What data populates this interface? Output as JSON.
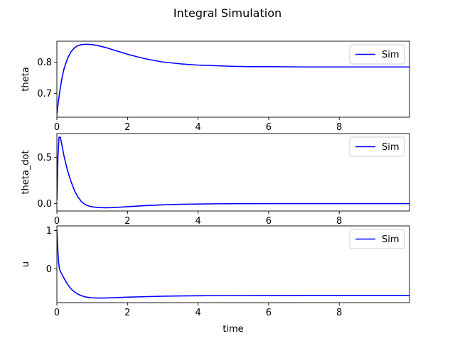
{
  "figure": {
    "suptitle": "Integral Simulation",
    "line_color": "#0000ff",
    "legend_border_color": "#cccccc"
  },
  "chart_data": [
    {
      "type": "line",
      "ylabel": "theta",
      "xlabel": "",
      "xlim": [
        0,
        9.99
      ],
      "ylim": [
        0.623,
        0.868
      ],
      "xticks": [
        0,
        2,
        4,
        6,
        8
      ],
      "yticks": [
        0.7,
        0.8
      ],
      "ytick_labels": [
        "0.7",
        "0.8"
      ],
      "legend": "upper right",
      "series": [
        {
          "name": "Sim",
          "x": [
            0,
            0.05,
            0.1,
            0.15,
            0.2,
            0.3,
            0.4,
            0.5,
            0.6,
            0.7,
            0.8,
            0.9,
            1.0,
            1.2,
            1.4,
            1.6,
            1.8,
            2.0,
            2.3,
            2.6,
            3.0,
            3.5,
            4.0,
            4.5,
            5.0,
            5.5,
            6.0,
            7.0,
            8.0,
            9.0,
            9.99
          ],
          "y": [
            0.634,
            0.68,
            0.72,
            0.752,
            0.778,
            0.812,
            0.834,
            0.847,
            0.854,
            0.857,
            0.858,
            0.858,
            0.857,
            0.853,
            0.847,
            0.84,
            0.833,
            0.826,
            0.817,
            0.809,
            0.801,
            0.795,
            0.791,
            0.789,
            0.787,
            0.786,
            0.786,
            0.785,
            0.785,
            0.785,
            0.785
          ]
        }
      ]
    },
    {
      "type": "line",
      "ylabel": "theta_dot",
      "xlabel": "",
      "xlim": [
        0,
        9.99
      ],
      "ylim": [
        -0.08,
        0.76
      ],
      "xticks": [
        0,
        2,
        4,
        6,
        8
      ],
      "yticks": [
        0.0,
        0.5
      ],
      "ytick_labels": [
        "0.0",
        "0.5"
      ],
      "legend": "upper right",
      "series": [
        {
          "name": "Sim",
          "x": [
            0,
            0.03,
            0.06,
            0.1,
            0.15,
            0.2,
            0.3,
            0.4,
            0.5,
            0.6,
            0.7,
            0.8,
            0.9,
            1.0,
            1.2,
            1.4,
            1.6,
            1.8,
            2.0,
            2.5,
            3.0,
            3.5,
            4.0,
            4.5,
            5.0,
            6.0,
            7.0,
            8.0,
            9.0,
            9.99
          ],
          "y": [
            0.04,
            0.5,
            0.72,
            0.72,
            0.62,
            0.52,
            0.36,
            0.24,
            0.14,
            0.07,
            0.02,
            -0.01,
            -0.025,
            -0.035,
            -0.043,
            -0.045,
            -0.043,
            -0.038,
            -0.033,
            -0.022,
            -0.013,
            -0.007,
            -0.004,
            -0.002,
            -0.001,
            0.0,
            0.0,
            0.0,
            0.0,
            0.0
          ]
        }
      ]
    },
    {
      "type": "line",
      "ylabel": "u",
      "xlabel": "time",
      "xlim": [
        0,
        9.99
      ],
      "ylim": [
        -0.88,
        1.12
      ],
      "xticks": [
        0,
        2,
        4,
        6,
        8
      ],
      "yticks": [
        0,
        1
      ],
      "ytick_labels": [
        "0",
        "1"
      ],
      "legend": "upper right",
      "series": [
        {
          "name": "Sim",
          "x": [
            0,
            0.02,
            0.05,
            0.08,
            0.1,
            0.15,
            0.2,
            0.3,
            0.4,
            0.5,
            0.6,
            0.7,
            0.8,
            0.9,
            1.0,
            1.2,
            1.4,
            1.6,
            1.8,
            2.0,
            2.5,
            3.0,
            3.5,
            4.0,
            4.5,
            5.0,
            6.0,
            7.0,
            8.0,
            9.0,
            9.99
          ],
          "y": [
            1.02,
            0.6,
            0.15,
            -0.02,
            -0.07,
            -0.15,
            -0.24,
            -0.4,
            -0.52,
            -0.6,
            -0.66,
            -0.7,
            -0.73,
            -0.745,
            -0.755,
            -0.76,
            -0.758,
            -0.752,
            -0.745,
            -0.738,
            -0.725,
            -0.713,
            -0.705,
            -0.7,
            -0.697,
            -0.695,
            -0.693,
            -0.692,
            -0.692,
            -0.692,
            -0.692
          ]
        }
      ]
    }
  ]
}
